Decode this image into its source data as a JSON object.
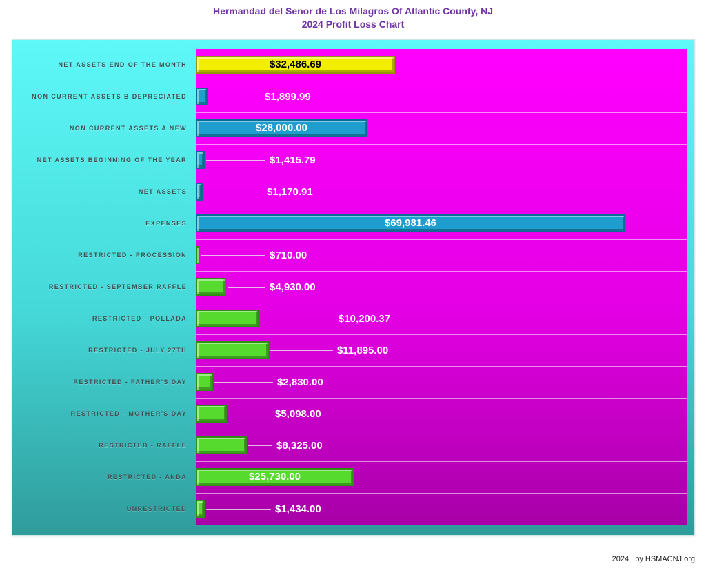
{
  "page": {
    "title_line1": "Hermandad del Senor de Los Milagros Of Atlantic County, NJ",
    "title_line2": "2024 Profit Loss Chart",
    "footer_year": "2024",
    "footer_credit": "by HSMACNJ.org"
  },
  "colors": {
    "title_text": "#7033A5",
    "category_label_text": "#3F5151",
    "chart_bg_top": "#5EF8F8",
    "chart_bg_bottom": "#2F9B9B",
    "plot_bg_top": "#FF00FF",
    "plot_bg_bottom": "#A800A8",
    "bar_yellow": "#F2EE00",
    "bar_blue": "#1E9ECF",
    "bar_green": "#57DA2E",
    "value_text_inside_yellow": "#000000",
    "value_text": "#FFFFFF"
  },
  "chart_data": {
    "type": "bar",
    "orientation": "horizontal",
    "title": "Hermandad del Senor de Los Milagros Of Atlantic County, NJ",
    "subtitle": "2024 Profit Loss Chart",
    "xlabel": "",
    "ylabel": "",
    "xlim": [
      0,
      80000
    ],
    "axis_max": 80000,
    "grid": "row-separators",
    "legend": "none",
    "rows": [
      {
        "label": "NET ASSETS END OF THE MONTH",
        "value": 32486.69,
        "value_text": "$32,486.69",
        "color": "yellow",
        "value_inside": true,
        "label_x": 0
      },
      {
        "label": "NON CURRENT ASSETS B DEPRECIATED",
        "value": 1899.99,
        "value_text": "$1,899.99",
        "color": "blue",
        "value_inside": false,
        "label_x": 100
      },
      {
        "label": "NON CURRENT ASSETS A NEW",
        "value": 28000.0,
        "value_text": "$28,000.00",
        "color": "blue",
        "value_inside": true,
        "label_x": 0
      },
      {
        "label": "NET ASSETS BEGINNING OF THE YEAR",
        "value": 1415.79,
        "value_text": "$1,415.79",
        "color": "blue",
        "value_inside": false,
        "label_x": 107
      },
      {
        "label": "NET ASSETS",
        "value": 1170.91,
        "value_text": "$1,170.91",
        "color": "blue",
        "value_inside": false,
        "label_x": 103
      },
      {
        "label": "EXPENSES",
        "value": 69981.46,
        "value_text": "$69,981.46",
        "color": "blue",
        "value_inside": true,
        "label_x": 0
      },
      {
        "label": "RESTRICTED - PROCESSION",
        "value": 710.0,
        "value_text": "$710.00",
        "color": "green",
        "value_inside": false,
        "label_x": 107
      },
      {
        "label": "RESTRICTED - SEPTEMBER RAFFLE",
        "value": 4930.0,
        "value_text": "$4,930.00",
        "color": "green",
        "value_inside": false,
        "label_x": 107
      },
      {
        "label": "RESTRICTED - POLLADA",
        "value": 10200.37,
        "value_text": "$10,200.37",
        "color": "green",
        "value_inside": false,
        "label_x": 207
      },
      {
        "label": "RESTRICTED - JULY 27TH",
        "value": 11895.0,
        "value_text": "$11,895.00",
        "color": "green",
        "value_inside": false,
        "label_x": 205
      },
      {
        "label": "RESTRICTED - FATHER'S DAY",
        "value": 2830.0,
        "value_text": "$2,830.00",
        "color": "green",
        "value_inside": false,
        "label_x": 118
      },
      {
        "label": "RESTRICTED - MOTHER'S DAY",
        "value": 5098.0,
        "value_text": "$5,098.00",
        "color": "green",
        "value_inside": false,
        "label_x": 115
      },
      {
        "label": "RESTRICTED - RAFFLE",
        "value": 8325.0,
        "value_text": "$8,325.00",
        "color": "green",
        "value_inside": false,
        "label_x": 117
      },
      {
        "label": "RESTRICTED - ANDA",
        "value": 25730.0,
        "value_text": "$25,730.00",
        "color": "green",
        "value_inside": true,
        "label_x": 0
      },
      {
        "label": "UNRESTRICTED",
        "value": 1434.0,
        "value_text": "$1,434.00",
        "color": "green",
        "value_inside": false,
        "label_x": 115
      }
    ]
  }
}
